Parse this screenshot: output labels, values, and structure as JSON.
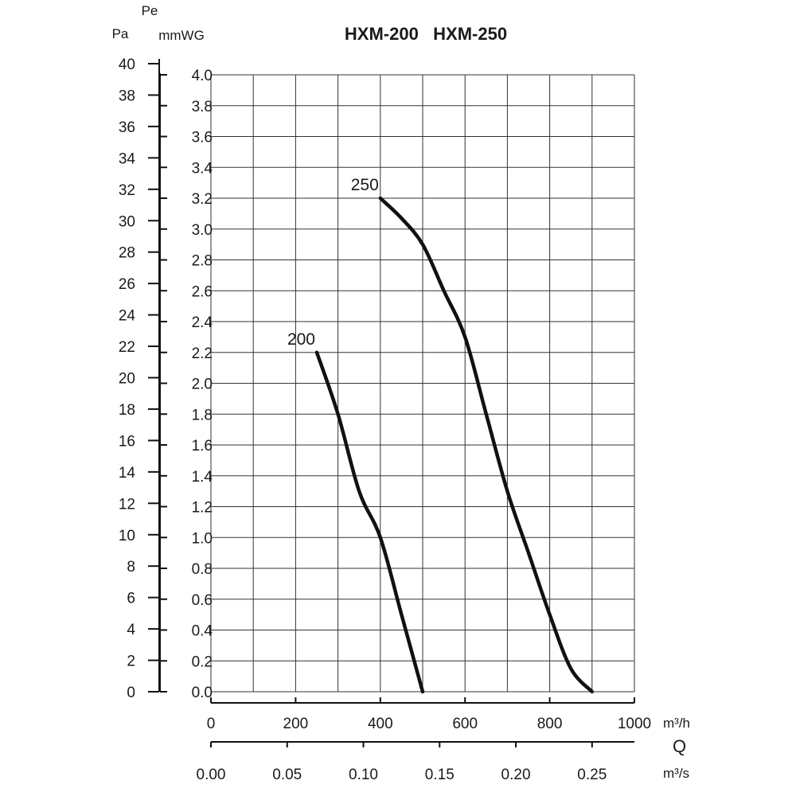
{
  "chart_data": {
    "type": "line",
    "title": "HXM-200   HXM-250",
    "y_units": {
      "pa": "Pa",
      "pe": "Pe",
      "mmwg": "mmWG"
    },
    "pa_ticks": [
      "0",
      "2",
      "4",
      "6",
      "8",
      "10",
      "12",
      "14",
      "16",
      "18",
      "20",
      "22",
      "24",
      "26",
      "28",
      "30",
      "32",
      "34",
      "36",
      "38",
      "40"
    ],
    "mmwg_ticks": [
      "0.0",
      "0.2",
      "0.4",
      "0.6",
      "0.8",
      "1.0",
      "1.2",
      "1.4",
      "1.6",
      "1.8",
      "2.0",
      "2.2",
      "2.4",
      "2.6",
      "2.8",
      "3.0",
      "3.2",
      "3.4",
      "3.6",
      "3.8",
      "4.0"
    ],
    "x_ticks_m3h": [
      "0",
      "200",
      "400",
      "600",
      "800",
      "1000"
    ],
    "x_unit_m3h": "m³/h",
    "x_label_q": "Q",
    "x_ticks_m3s": [
      "0.00",
      "0.05",
      "0.10",
      "0.15",
      "0.20",
      "0.25"
    ],
    "x_unit_m3s": "m³/s",
    "xlim": [
      0,
      1000
    ],
    "ylim": [
      0,
      4.0
    ],
    "grid": true,
    "series": [
      {
        "name": "200",
        "points": [
          [
            250,
            2.2
          ],
          [
            300,
            1.8
          ],
          [
            350,
            1.3
          ],
          [
            400,
            1.0
          ],
          [
            450,
            0.5
          ],
          [
            500,
            0.0
          ]
        ]
      },
      {
        "name": "250",
        "points": [
          [
            400,
            3.2
          ],
          [
            450,
            3.07
          ],
          [
            500,
            2.9
          ],
          [
            550,
            2.6
          ],
          [
            600,
            2.3
          ],
          [
            650,
            1.8
          ],
          [
            700,
            1.3
          ],
          [
            750,
            0.9
          ],
          [
            800,
            0.5
          ],
          [
            850,
            0.15
          ],
          [
            900,
            0.0
          ]
        ]
      }
    ]
  }
}
